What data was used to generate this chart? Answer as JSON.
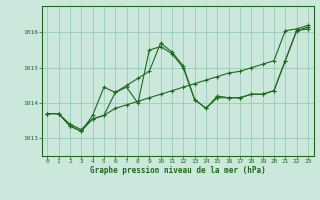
{
  "title": "Graphe pression niveau de la mer (hPa)",
  "bg_color": "#cce8dd",
  "grid_color": "#99ccbb",
  "line_color": "#1a6b1a",
  "marker_color": "#1a6b1a",
  "xlim": [
    -0.5,
    23.5
  ],
  "ylim": [
    1012.5,
    1016.75
  ],
  "yticks": [
    1013,
    1014,
    1015,
    1016
  ],
  "xticks": [
    0,
    1,
    2,
    3,
    4,
    5,
    6,
    7,
    8,
    9,
    10,
    11,
    12,
    13,
    14,
    15,
    16,
    17,
    18,
    19,
    20,
    21,
    22,
    23
  ],
  "series1_x": [
    0,
    1,
    2,
    3,
    4,
    5,
    6,
    7,
    8,
    9,
    10,
    11,
    12,
    13,
    14,
    15,
    16,
    17,
    18,
    19,
    20,
    21,
    22,
    23
  ],
  "series1_y": [
    1013.7,
    1013.7,
    1013.4,
    1013.25,
    1013.55,
    1013.65,
    1013.85,
    1013.95,
    1014.05,
    1014.15,
    1014.25,
    1014.35,
    1014.45,
    1014.55,
    1014.65,
    1014.75,
    1014.85,
    1014.9,
    1015.0,
    1015.1,
    1015.2,
    1016.05,
    1016.1,
    1016.2
  ],
  "series2_x": [
    0,
    1,
    2,
    3,
    4,
    5,
    6,
    7,
    8,
    9,
    10,
    11,
    12,
    13,
    14,
    15,
    16,
    17,
    18,
    19,
    20,
    21,
    22,
    23
  ],
  "series2_y": [
    1013.7,
    1013.7,
    1013.35,
    1013.2,
    1013.55,
    1013.65,
    1014.3,
    1014.5,
    1014.7,
    1014.9,
    1015.7,
    1015.45,
    1015.05,
    1014.1,
    1013.85,
    1014.15,
    1014.15,
    1014.15,
    1014.25,
    1014.25,
    1014.35,
    1015.2,
    1016.05,
    1016.1
  ],
  "series3_x": [
    0,
    1,
    2,
    3,
    4,
    5,
    6,
    7,
    8,
    9,
    10,
    11,
    12,
    13,
    14,
    15,
    16,
    17,
    18,
    19,
    20,
    21,
    22,
    23
  ],
  "series3_y": [
    1013.7,
    1013.7,
    1013.35,
    1013.2,
    1013.65,
    1014.45,
    1014.3,
    1014.45,
    1014.0,
    1015.5,
    1015.6,
    1015.4,
    1015.0,
    1014.1,
    1013.85,
    1014.2,
    1014.15,
    1014.15,
    1014.25,
    1014.25,
    1014.35,
    1015.2,
    1016.05,
    1016.15
  ]
}
